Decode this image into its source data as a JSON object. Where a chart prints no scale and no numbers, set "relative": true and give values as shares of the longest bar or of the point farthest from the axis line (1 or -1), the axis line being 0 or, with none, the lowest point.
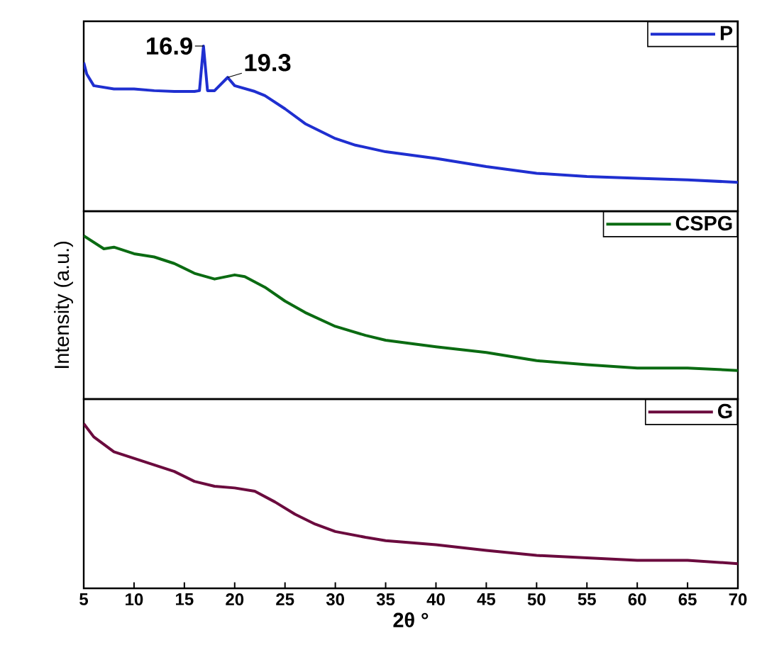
{
  "chart_data": [
    {
      "type": "line",
      "relative": true,
      "xlim": [
        5,
        70
      ],
      "tick_labels": false,
      "legend": "top right",
      "x": [
        5,
        5.3,
        6,
        8,
        10,
        12,
        14,
        16,
        16.5,
        16.9,
        17.3,
        18,
        19.3,
        20,
        22,
        23,
        25,
        27,
        30,
        32,
        35,
        40,
        45,
        50,
        55,
        60,
        65,
        70
      ],
      "series": [
        {
          "name": "P",
          "color": "#1f2fd0",
          "values": [
            0.9,
            0.83,
            0.76,
            0.74,
            0.74,
            0.73,
            0.725,
            0.725,
            0.73,
            1.0,
            0.73,
            0.73,
            0.81,
            0.76,
            0.725,
            0.7,
            0.62,
            0.53,
            0.44,
            0.4,
            0.36,
            0.32,
            0.27,
            0.23,
            0.21,
            0.2,
            0.19,
            0.175
          ]
        }
      ],
      "annotations": [
        {
          "text": "16.9",
          "x": 16.9,
          "y": 1.0
        },
        {
          "text": "19.3",
          "x": 19.3,
          "y": 0.81
        }
      ]
    },
    {
      "type": "line",
      "relative": true,
      "xlim": [
        5,
        70
      ],
      "tick_labels": false,
      "legend": "top right",
      "ylabel": "Intensity (a.u.)",
      "x": [
        5,
        7,
        8,
        10,
        12,
        14,
        16,
        18,
        20,
        21,
        23,
        25,
        27,
        30,
        33,
        35,
        40,
        45,
        50,
        55,
        60,
        65,
        70
      ],
      "series": [
        {
          "name": "CSPG",
          "color": "#0b6b12",
          "values": [
            1.0,
            0.92,
            0.93,
            0.89,
            0.87,
            0.83,
            0.77,
            0.735,
            0.76,
            0.75,
            0.685,
            0.6,
            0.53,
            0.445,
            0.39,
            0.36,
            0.32,
            0.285,
            0.235,
            0.21,
            0.19,
            0.19,
            0.175
          ]
        }
      ]
    },
    {
      "type": "line",
      "relative": true,
      "xlim": [
        5,
        70
      ],
      "xticks": [
        5,
        10,
        15,
        20,
        25,
        30,
        35,
        40,
        45,
        50,
        55,
        60,
        65,
        70
      ],
      "tick_labels": "x",
      "legend": "top right",
      "xlabel": "2θ °",
      "x": [
        5,
        6,
        8,
        10,
        12,
        14,
        16,
        18,
        20,
        22,
        24,
        26,
        28,
        30,
        33,
        35,
        40,
        45,
        50,
        55,
        60,
        65,
        70
      ],
      "series": [
        {
          "name": "G",
          "color": "#6b0b3e",
          "values": [
            1.0,
            0.92,
            0.83,
            0.79,
            0.75,
            0.71,
            0.65,
            0.62,
            0.61,
            0.59,
            0.525,
            0.45,
            0.39,
            0.345,
            0.31,
            0.29,
            0.265,
            0.23,
            0.2,
            0.185,
            0.17,
            0.17,
            0.15
          ]
        }
      ]
    }
  ]
}
